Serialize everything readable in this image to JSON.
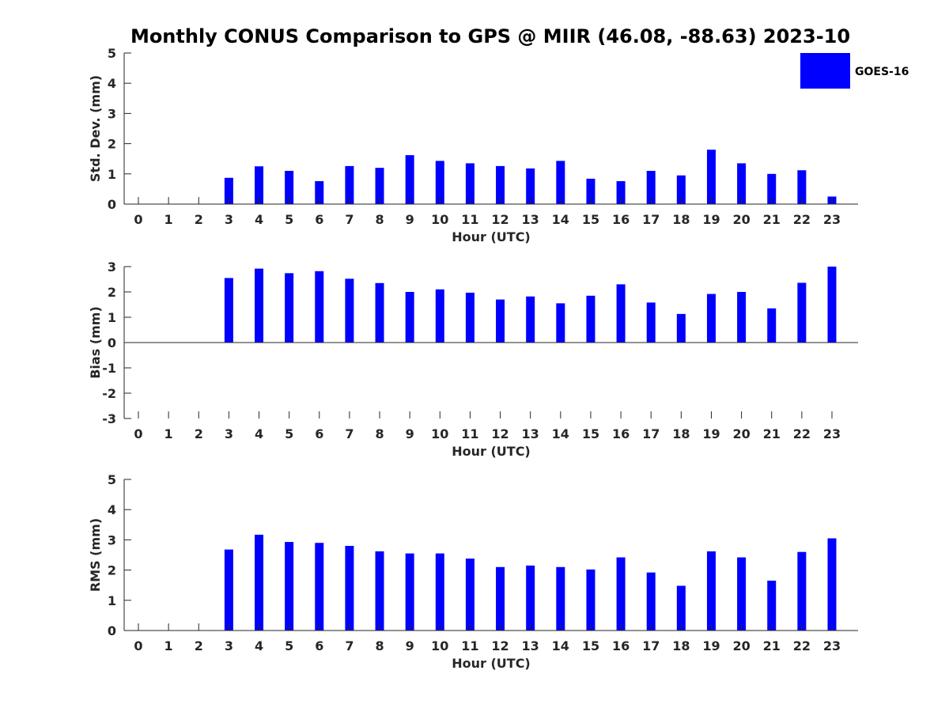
{
  "figure_title": "Monthly CONUS Comparison to GPS @ MIIR (46.08, -88.63) 2023-10",
  "legend": {
    "label": "GOES-16",
    "color": "#0000ff"
  },
  "chart_data": [
    {
      "type": "bar",
      "ylabel": "Std. Dev. (mm)",
      "xlabel": "Hour (UTC)",
      "ylim": [
        0,
        5
      ],
      "yticks": [
        0,
        1,
        2,
        3,
        4,
        5
      ],
      "categories": [
        "0",
        "1",
        "2",
        "3",
        "4",
        "5",
        "6",
        "7",
        "8",
        "9",
        "10",
        "11",
        "12",
        "13",
        "14",
        "15",
        "16",
        "17",
        "18",
        "19",
        "20",
        "21",
        "22",
        "23"
      ],
      "series": [
        {
          "name": "GOES-16",
          "color": "#0000ff",
          "values": [
            null,
            null,
            null,
            0.87,
            1.25,
            1.1,
            0.76,
            1.26,
            1.2,
            1.62,
            1.43,
            1.35,
            1.26,
            1.18,
            1.43,
            0.84,
            0.76,
            1.1,
            0.95,
            1.8,
            1.35,
            1.0,
            1.12,
            0.25
          ]
        }
      ]
    },
    {
      "type": "bar",
      "ylabel": "Bias (mm)",
      "xlabel": "Hour (UTC)",
      "ylim": [
        -3,
        3
      ],
      "yticks": [
        -3,
        -2,
        -1,
        0,
        1,
        2,
        3
      ],
      "categories": [
        "0",
        "1",
        "2",
        "3",
        "4",
        "5",
        "6",
        "7",
        "8",
        "9",
        "10",
        "11",
        "12",
        "13",
        "14",
        "15",
        "16",
        "17",
        "18",
        "19",
        "20",
        "21",
        "22",
        "23"
      ],
      "series": [
        {
          "name": "GOES-16",
          "color": "#0000ff",
          "values": [
            null,
            null,
            null,
            2.55,
            2.92,
            2.74,
            2.82,
            2.52,
            2.35,
            2.0,
            2.1,
            1.97,
            1.7,
            1.82,
            1.55,
            1.85,
            2.3,
            1.58,
            1.13,
            1.92,
            2.0,
            1.35,
            2.36,
            3.0
          ]
        }
      ]
    },
    {
      "type": "bar",
      "ylabel": "RMS (mm)",
      "xlabel": "Hour (UTC)",
      "ylim": [
        0,
        5
      ],
      "yticks": [
        0,
        1,
        2,
        3,
        4,
        5
      ],
      "categories": [
        "0",
        "1",
        "2",
        "3",
        "4",
        "5",
        "6",
        "7",
        "8",
        "9",
        "10",
        "11",
        "12",
        "13",
        "14",
        "15",
        "16",
        "17",
        "18",
        "19",
        "20",
        "21",
        "22",
        "23"
      ],
      "series": [
        {
          "name": "GOES-16",
          "color": "#0000ff",
          "values": [
            null,
            null,
            null,
            2.68,
            3.17,
            2.93,
            2.9,
            2.8,
            2.62,
            2.55,
            2.55,
            2.38,
            2.1,
            2.15,
            2.1,
            2.02,
            2.42,
            1.92,
            1.48,
            2.62,
            2.42,
            1.65,
            2.6,
            3.05
          ]
        }
      ]
    }
  ]
}
